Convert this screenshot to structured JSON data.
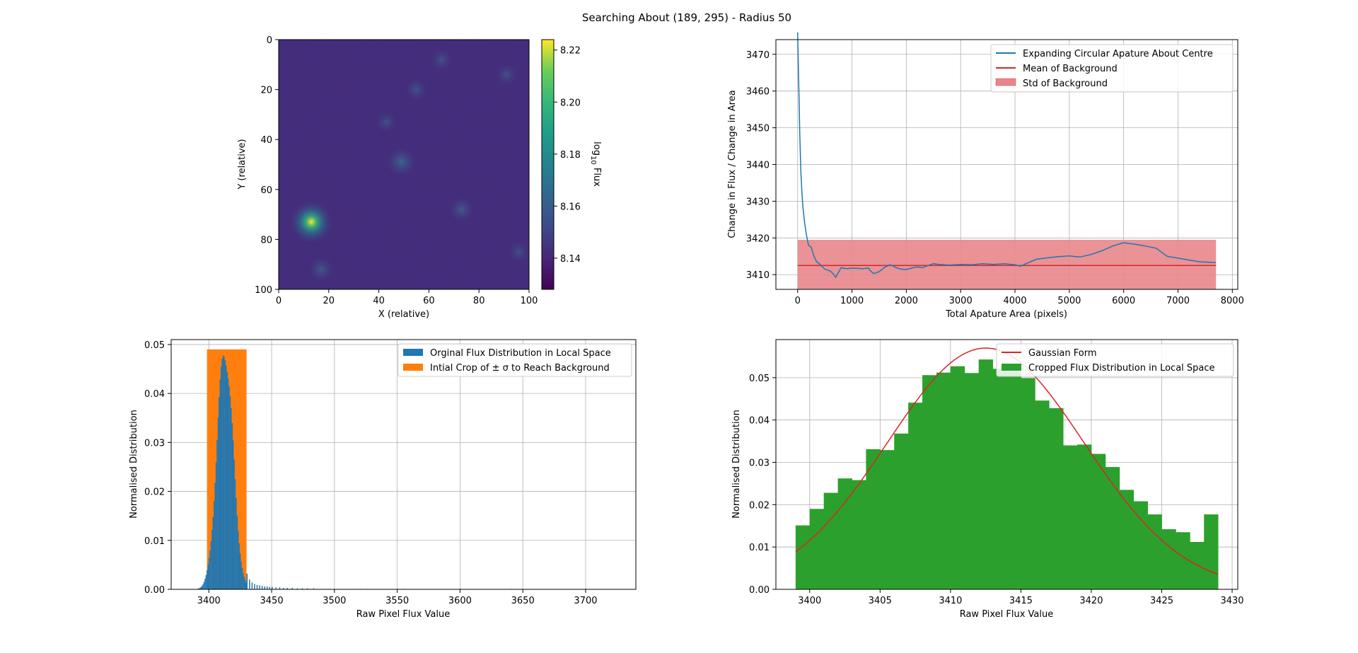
{
  "figure": {
    "suptitle": "Searching About (189, 295) - Radius 50"
  },
  "colors": {
    "blue": "#1f77b4",
    "orange": "#ff7f0e",
    "green": "#2ca02c",
    "red": "#d62728",
    "std_fill": "#e8868a",
    "grid": "#b0b0b0",
    "viridis_dark": "#440154",
    "viridis_bg": "#472d7b",
    "viridis_yellow": "#fde725"
  },
  "chart_data": [
    {
      "type": "heatmap",
      "xlabel": "X (relative)",
      "ylabel": "Y (relative)",
      "xlim": [
        0,
        100
      ],
      "ylim": [
        100,
        0
      ],
      "xticks": [
        0,
        20,
        40,
        60,
        80,
        100
      ],
      "yticks": [
        0,
        20,
        40,
        60,
        80,
        100
      ],
      "colorbar": {
        "label_prefix": "log",
        "label_sub": "10",
        "label_suffix": " Flux",
        "range": [
          8.128,
          8.224
        ],
        "ticks": [
          8.14,
          8.16,
          8.18,
          8.2,
          8.22
        ]
      },
      "sources": [
        {
          "x": 13,
          "y": 73,
          "peak": 0.95
        },
        {
          "x": 49,
          "y": 49,
          "peak": 0.28
        },
        {
          "x": 73,
          "y": 68,
          "peak": 0.18
        },
        {
          "x": 17,
          "y": 92,
          "peak": 0.18
        },
        {
          "x": 55,
          "y": 20,
          "peak": 0.12
        },
        {
          "x": 65,
          "y": 8,
          "peak": 0.12
        },
        {
          "x": 91,
          "y": 14,
          "peak": 0.12
        },
        {
          "x": 43,
          "y": 33,
          "peak": 0.1
        },
        {
          "x": 96,
          "y": 85,
          "peak": 0.1
        }
      ]
    },
    {
      "type": "line",
      "xlabel": "Total Apature Area (pixels)",
      "ylabel": "Change in Flux / Change in Area",
      "xlim": [
        -400,
        8100
      ],
      "ylim": [
        3406,
        3474
      ],
      "xticks": [
        0,
        1000,
        2000,
        3000,
        4000,
        5000,
        6000,
        7000,
        8000
      ],
      "yticks": [
        3410,
        3420,
        3430,
        3440,
        3450,
        3460,
        3470
      ],
      "grid": true,
      "legend": "top-right",
      "series": [
        {
          "name": "Expanding Circular Apature About Centre",
          "x": [
            0,
            20,
            40,
            60,
            80,
            100,
            130,
            160,
            200,
            250,
            300,
            350,
            400,
            500,
            600,
            650,
            700,
            800,
            900,
            1000,
            1100,
            1200,
            1300,
            1350,
            1400,
            1500,
            1600,
            1700,
            1750,
            1800,
            1900,
            2000,
            2100,
            2200,
            2300,
            2400,
            2500,
            2600,
            2800,
            3000,
            3200,
            3400,
            3600,
            3800,
            4000,
            4100,
            4200,
            4300,
            4400,
            4600,
            4800,
            5000,
            5200,
            5400,
            5600,
            5800,
            6000,
            6200,
            6400,
            6600,
            6800,
            7000,
            7200,
            7400,
            7700
          ],
          "values": [
            3476,
            3462,
            3448,
            3438,
            3432,
            3428,
            3424,
            3421,
            3418,
            3417.5,
            3415,
            3413.5,
            3413,
            3411.5,
            3411,
            3410.3,
            3409.3,
            3411.9,
            3411.6,
            3411.8,
            3411.7,
            3411.6,
            3411.8,
            3410.9,
            3410.3,
            3410.8,
            3412,
            3412.7,
            3412.4,
            3412,
            3411.5,
            3411.4,
            3411.8,
            3412.1,
            3411.9,
            3412.5,
            3413,
            3412.8,
            3412.6,
            3412.8,
            3412.7,
            3413,
            3412.8,
            3413,
            3412.7,
            3412.3,
            3413,
            3413.6,
            3414.2,
            3414.6,
            3414.9,
            3415.1,
            3414.8,
            3415.5,
            3416.5,
            3417.8,
            3418.7,
            3418.3,
            3417.8,
            3417.2,
            3415,
            3414.5,
            3414,
            3413.5,
            3413.3
          ],
          "color": "#1f77b4"
        },
        {
          "name": "Mean of Background",
          "x": [
            0,
            7700
          ],
          "values": [
            3412.5,
            3412.5
          ],
          "color": "#d62728"
        }
      ],
      "band": {
        "name": "Std of Background",
        "x": [
          0,
          7700
        ],
        "lower": 3406,
        "upper": 3419.5,
        "color": "#e8868a"
      }
    },
    {
      "type": "bar",
      "xlabel": "Raw Pixel Flux Value",
      "ylabel": "Normalised Distribution",
      "xlim": [
        3370,
        3740
      ],
      "ylim": [
        0,
        0.051
      ],
      "xticks": [
        3400,
        3450,
        3500,
        3550,
        3600,
        3650,
        3700
      ],
      "yticks": [
        0,
        0.01,
        0.02,
        0.03,
        0.04,
        0.05
      ],
      "ytick_labels": [
        "0.00",
        "0.01",
        "0.02",
        "0.03",
        "0.04",
        "0.05"
      ],
      "grid": true,
      "legend": "top-right",
      "series": [
        {
          "name": "Orginal Flux Distribution in Local Space",
          "color": "#1f77b4",
          "gauss": {
            "mean": 3412.5,
            "sigma": 6.3,
            "peak": 0.049
          },
          "bin_width": 0.8,
          "tail": [
            [
              3430,
              0.0032
            ],
            [
              3432,
              0.002
            ],
            [
              3434,
              0.0014
            ],
            [
              3436,
              0.0011
            ],
            [
              3438,
              0.0009
            ],
            [
              3440,
              0.0008
            ],
            [
              3442,
              0.0007
            ],
            [
              3444,
              0.0006
            ],
            [
              3446,
              0.0006
            ],
            [
              3448,
              0.0005
            ],
            [
              3450,
              0.0005
            ],
            [
              3453,
              0.0004
            ],
            [
              3456,
              0.0004
            ],
            [
              3459,
              0.0003
            ],
            [
              3462,
              0.0003
            ],
            [
              3466,
              0.0003
            ],
            [
              3470,
              0.0002
            ],
            [
              3474,
              0.0002
            ],
            [
              3478,
              0.0002
            ],
            [
              3483,
              0.0002
            ],
            [
              3490,
              0.0001
            ],
            [
              3495,
              0.0001
            ],
            [
              3520,
              0.0001
            ],
            [
              3525,
              0.0001
            ],
            [
              3550,
              0.0001
            ],
            [
              3555,
              0.0001
            ],
            [
              3600,
              0.0001
            ],
            [
              3640,
              0.0001
            ],
            [
              3700,
              0.0001
            ]
          ]
        },
        {
          "name": "Intial Crop of ± σ to Reach Background",
          "color": "#ff7f0e",
          "x_range": [
            3398.5,
            3430
          ],
          "height": 0.049
        }
      ]
    },
    {
      "type": "bar",
      "xlabel": "Raw Pixel Flux Value",
      "ylabel": "Normalised Distribution",
      "xlim": [
        3397.6,
        3430.4
      ],
      "ylim": [
        0,
        0.059
      ],
      "xticks": [
        3400,
        3405,
        3410,
        3415,
        3420,
        3425,
        3430
      ],
      "yticks": [
        0,
        0.01,
        0.02,
        0.03,
        0.04,
        0.05
      ],
      "ytick_labels": [
        "0.00",
        "0.01",
        "0.02",
        "0.03",
        "0.04",
        "0.05"
      ],
      "grid": true,
      "legend": "top-right",
      "series": [
        {
          "name": "Cropped Flux Distribution in Local Space",
          "color": "#2ca02c",
          "bin_edges": [
            3399,
            3400,
            3401,
            3402,
            3403,
            3404,
            3405,
            3406,
            3407,
            3408,
            3409,
            3410,
            3411,
            3412,
            3413,
            3414,
            3415,
            3416,
            3417,
            3418,
            3419,
            3420,
            3421,
            3422,
            3423,
            3424,
            3425,
            3426,
            3427,
            3428,
            3429
          ],
          "values": [
            0.0151,
            0.019,
            0.0228,
            0.0262,
            0.0258,
            0.0331,
            0.0329,
            0.0368,
            0.0441,
            0.0506,
            0.0512,
            0.0527,
            0.0511,
            0.0543,
            0.0521,
            0.0515,
            0.0499,
            0.0446,
            0.0428,
            0.034,
            0.0342,
            0.032,
            0.0289,
            0.0235,
            0.0208,
            0.0177,
            0.0142,
            0.0135,
            0.0112,
            0.0177
          ]
        },
        {
          "name": "Gaussian Form",
          "color": "#d62728",
          "gauss": {
            "mean": 3412.5,
            "sigma": 7.0,
            "peak": 0.057
          },
          "x_range": [
            3399,
            3429
          ]
        }
      ]
    }
  ]
}
